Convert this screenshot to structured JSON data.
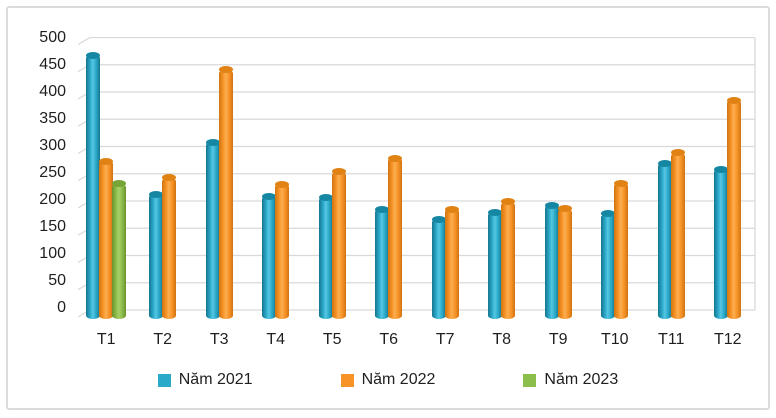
{
  "chart_data": {
    "type": "bar",
    "style": "3d-cylinder-clustered",
    "title": "",
    "xlabel": "",
    "ylabel": "",
    "categories": [
      "T1",
      "T2",
      "T3",
      "T4",
      "T5",
      "T6",
      "T7",
      "T8",
      "T9",
      "T10",
      "T11",
      "T12"
    ],
    "series": [
      {
        "name": "Năm 2021",
        "color": "#2BA9C9",
        "color_dark": "#15758E",
        "color_light": "#55C6E2",
        "color_cap": "#1587A3",
        "values": [
          475,
          220,
          315,
          216,
          214,
          192,
          174,
          187,
          200,
          184,
          277,
          266
        ]
      },
      {
        "name": "Năm 2022",
        "color": "#F79428",
        "color_dark": "#D07410",
        "color_light": "#FBAE51",
        "color_cap": "#E08214",
        "values": [
          280,
          250,
          448,
          238,
          261,
          286,
          192,
          206,
          193,
          240,
          296,
          392
        ]
      },
      {
        "name": "Năm 2023",
        "color": "#8CBE4C",
        "color_dark": "#69922B",
        "color_light": "#A6D068",
        "color_cap": "#76A437",
        "values": [
          239,
          null,
          null,
          null,
          null,
          null,
          null,
          null,
          null,
          null,
          null,
          null
        ]
      }
    ],
    "ylim": [
      0,
      500
    ],
    "ytick_step": 50,
    "yticks": [
      0,
      50,
      100,
      150,
      200,
      250,
      300,
      350,
      400,
      450,
      500
    ],
    "grid": true,
    "legend_position": "bottom",
    "colors": {
      "grid": "#D9D9D9",
      "axis_text": "#1F1F1F",
      "frame_border": "#DBDBDB",
      "background": "#FFFFFF"
    }
  }
}
